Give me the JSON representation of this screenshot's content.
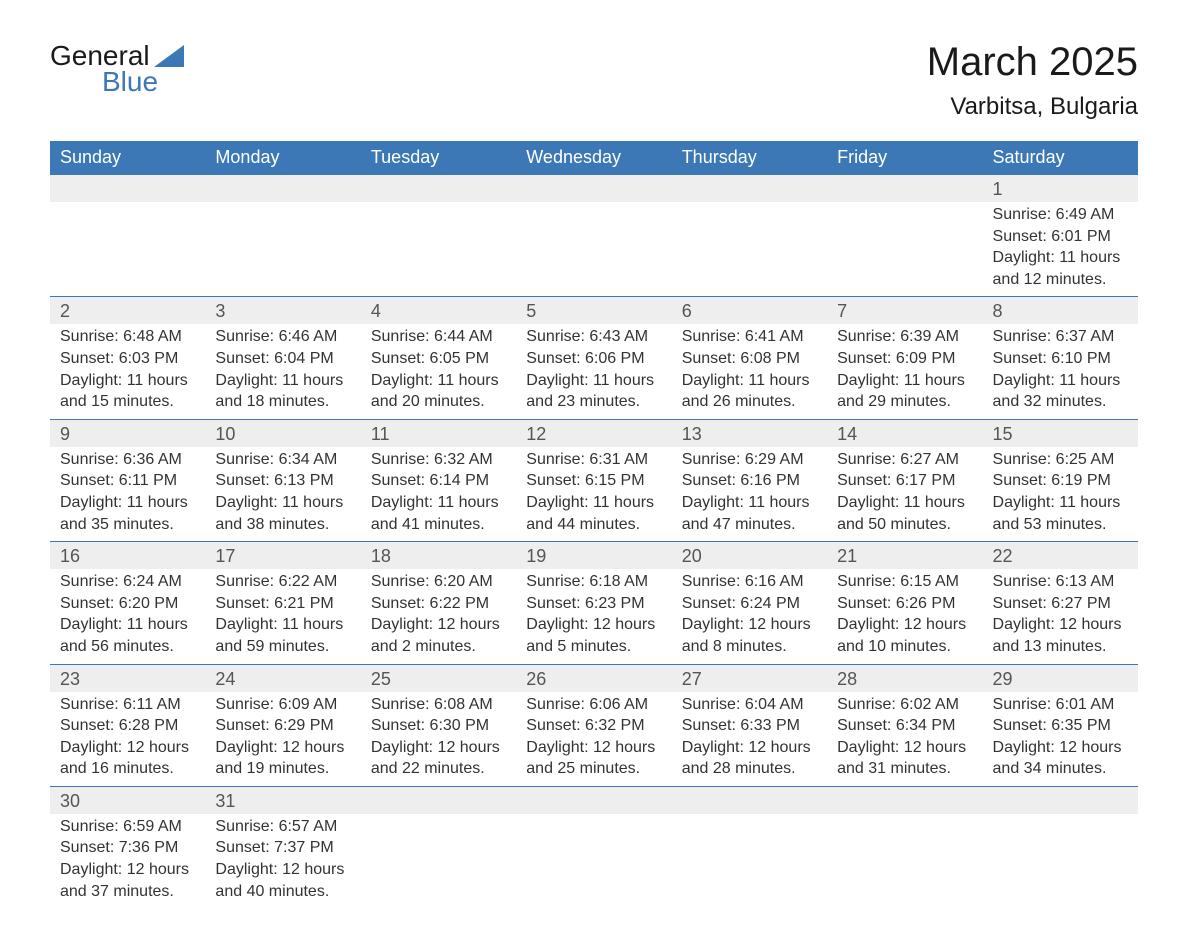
{
  "logo": {
    "text1": "General",
    "text2": "Blue"
  },
  "title": "March 2025",
  "location": "Varbitsa, Bulgaria",
  "colors": {
    "headerBg": "#3b78b5",
    "headerText": "#ffffff",
    "dayNumBg": "#eeeeee",
    "rowBorder": "#3b78b5",
    "bodyText": "#333333",
    "pageBg": "#ffffff"
  },
  "weekdays": [
    "Sunday",
    "Monday",
    "Tuesday",
    "Wednesday",
    "Thursday",
    "Friday",
    "Saturday"
  ],
  "weeks": [
    [
      null,
      null,
      null,
      null,
      null,
      null,
      {
        "n": "1",
        "sr": "Sunrise: 6:49 AM",
        "ss": "Sunset: 6:01 PM",
        "d1": "Daylight: 11 hours",
        "d2": "and 12 minutes."
      }
    ],
    [
      {
        "n": "2",
        "sr": "Sunrise: 6:48 AM",
        "ss": "Sunset: 6:03 PM",
        "d1": "Daylight: 11 hours",
        "d2": "and 15 minutes."
      },
      {
        "n": "3",
        "sr": "Sunrise: 6:46 AM",
        "ss": "Sunset: 6:04 PM",
        "d1": "Daylight: 11 hours",
        "d2": "and 18 minutes."
      },
      {
        "n": "4",
        "sr": "Sunrise: 6:44 AM",
        "ss": "Sunset: 6:05 PM",
        "d1": "Daylight: 11 hours",
        "d2": "and 20 minutes."
      },
      {
        "n": "5",
        "sr": "Sunrise: 6:43 AM",
        "ss": "Sunset: 6:06 PM",
        "d1": "Daylight: 11 hours",
        "d2": "and 23 minutes."
      },
      {
        "n": "6",
        "sr": "Sunrise: 6:41 AM",
        "ss": "Sunset: 6:08 PM",
        "d1": "Daylight: 11 hours",
        "d2": "and 26 minutes."
      },
      {
        "n": "7",
        "sr": "Sunrise: 6:39 AM",
        "ss": "Sunset: 6:09 PM",
        "d1": "Daylight: 11 hours",
        "d2": "and 29 minutes."
      },
      {
        "n": "8",
        "sr": "Sunrise: 6:37 AM",
        "ss": "Sunset: 6:10 PM",
        "d1": "Daylight: 11 hours",
        "d2": "and 32 minutes."
      }
    ],
    [
      {
        "n": "9",
        "sr": "Sunrise: 6:36 AM",
        "ss": "Sunset: 6:11 PM",
        "d1": "Daylight: 11 hours",
        "d2": "and 35 minutes."
      },
      {
        "n": "10",
        "sr": "Sunrise: 6:34 AM",
        "ss": "Sunset: 6:13 PM",
        "d1": "Daylight: 11 hours",
        "d2": "and 38 minutes."
      },
      {
        "n": "11",
        "sr": "Sunrise: 6:32 AM",
        "ss": "Sunset: 6:14 PM",
        "d1": "Daylight: 11 hours",
        "d2": "and 41 minutes."
      },
      {
        "n": "12",
        "sr": "Sunrise: 6:31 AM",
        "ss": "Sunset: 6:15 PM",
        "d1": "Daylight: 11 hours",
        "d2": "and 44 minutes."
      },
      {
        "n": "13",
        "sr": "Sunrise: 6:29 AM",
        "ss": "Sunset: 6:16 PM",
        "d1": "Daylight: 11 hours",
        "d2": "and 47 minutes."
      },
      {
        "n": "14",
        "sr": "Sunrise: 6:27 AM",
        "ss": "Sunset: 6:17 PM",
        "d1": "Daylight: 11 hours",
        "d2": "and 50 minutes."
      },
      {
        "n": "15",
        "sr": "Sunrise: 6:25 AM",
        "ss": "Sunset: 6:19 PM",
        "d1": "Daylight: 11 hours",
        "d2": "and 53 minutes."
      }
    ],
    [
      {
        "n": "16",
        "sr": "Sunrise: 6:24 AM",
        "ss": "Sunset: 6:20 PM",
        "d1": "Daylight: 11 hours",
        "d2": "and 56 minutes."
      },
      {
        "n": "17",
        "sr": "Sunrise: 6:22 AM",
        "ss": "Sunset: 6:21 PM",
        "d1": "Daylight: 11 hours",
        "d2": "and 59 minutes."
      },
      {
        "n": "18",
        "sr": "Sunrise: 6:20 AM",
        "ss": "Sunset: 6:22 PM",
        "d1": "Daylight: 12 hours",
        "d2": "and 2 minutes."
      },
      {
        "n": "19",
        "sr": "Sunrise: 6:18 AM",
        "ss": "Sunset: 6:23 PM",
        "d1": "Daylight: 12 hours",
        "d2": "and 5 minutes."
      },
      {
        "n": "20",
        "sr": "Sunrise: 6:16 AM",
        "ss": "Sunset: 6:24 PM",
        "d1": "Daylight: 12 hours",
        "d2": "and 8 minutes."
      },
      {
        "n": "21",
        "sr": "Sunrise: 6:15 AM",
        "ss": "Sunset: 6:26 PM",
        "d1": "Daylight: 12 hours",
        "d2": "and 10 minutes."
      },
      {
        "n": "22",
        "sr": "Sunrise: 6:13 AM",
        "ss": "Sunset: 6:27 PM",
        "d1": "Daylight: 12 hours",
        "d2": "and 13 minutes."
      }
    ],
    [
      {
        "n": "23",
        "sr": "Sunrise: 6:11 AM",
        "ss": "Sunset: 6:28 PM",
        "d1": "Daylight: 12 hours",
        "d2": "and 16 minutes."
      },
      {
        "n": "24",
        "sr": "Sunrise: 6:09 AM",
        "ss": "Sunset: 6:29 PM",
        "d1": "Daylight: 12 hours",
        "d2": "and 19 minutes."
      },
      {
        "n": "25",
        "sr": "Sunrise: 6:08 AM",
        "ss": "Sunset: 6:30 PM",
        "d1": "Daylight: 12 hours",
        "d2": "and 22 minutes."
      },
      {
        "n": "26",
        "sr": "Sunrise: 6:06 AM",
        "ss": "Sunset: 6:32 PM",
        "d1": "Daylight: 12 hours",
        "d2": "and 25 minutes."
      },
      {
        "n": "27",
        "sr": "Sunrise: 6:04 AM",
        "ss": "Sunset: 6:33 PM",
        "d1": "Daylight: 12 hours",
        "d2": "and 28 minutes."
      },
      {
        "n": "28",
        "sr": "Sunrise: 6:02 AM",
        "ss": "Sunset: 6:34 PM",
        "d1": "Daylight: 12 hours",
        "d2": "and 31 minutes."
      },
      {
        "n": "29",
        "sr": "Sunrise: 6:01 AM",
        "ss": "Sunset: 6:35 PM",
        "d1": "Daylight: 12 hours",
        "d2": "and 34 minutes."
      }
    ],
    [
      {
        "n": "30",
        "sr": "Sunrise: 6:59 AM",
        "ss": "Sunset: 7:36 PM",
        "d1": "Daylight: 12 hours",
        "d2": "and 37 minutes."
      },
      {
        "n": "31",
        "sr": "Sunrise: 6:57 AM",
        "ss": "Sunset: 7:37 PM",
        "d1": "Daylight: 12 hours",
        "d2": "and 40 minutes."
      },
      null,
      null,
      null,
      null,
      null
    ]
  ]
}
